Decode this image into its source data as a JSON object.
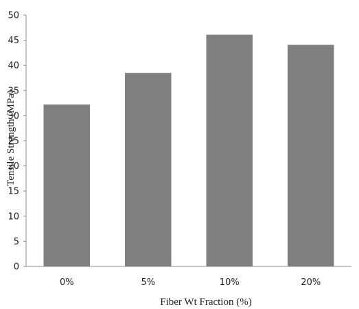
{
  "chart_data": {
    "type": "bar",
    "title": "",
    "xlabel": "Fiber Wt Fraction (%)",
    "ylabel": "Tensile Strength (MPa)",
    "categories": [
      "0%",
      "5%",
      "10%",
      "20%"
    ],
    "values": [
      32.2,
      38.5,
      46.1,
      44.1
    ],
    "ylim": [
      0,
      50
    ],
    "yticks": [
      0,
      5,
      10,
      15,
      20,
      25,
      30,
      35,
      40,
      45,
      50
    ],
    "grid": false,
    "legend": "none",
    "colors": {
      "bar": "#808080",
      "axis": "#8c8c8c"
    }
  }
}
